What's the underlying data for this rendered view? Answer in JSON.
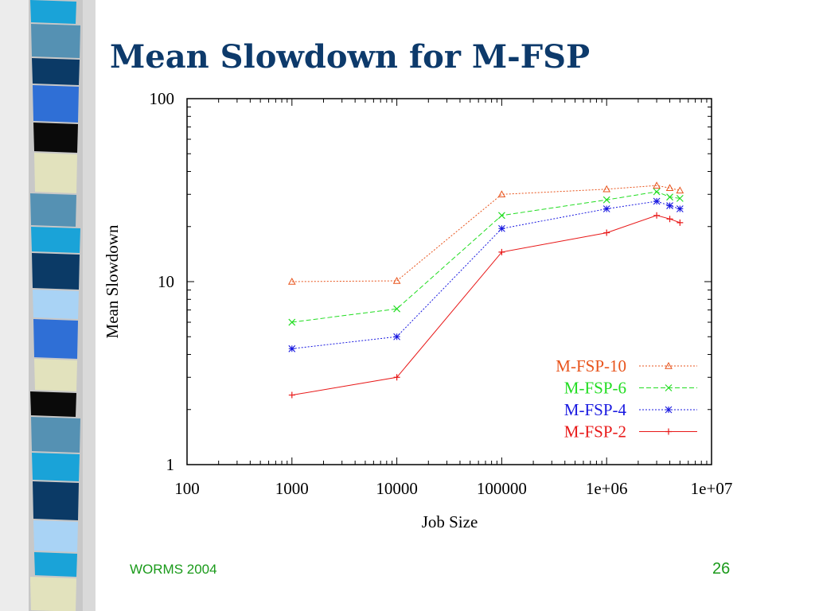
{
  "slide": {
    "title": "Mean Slowdown for M-FSP",
    "footer_left": "WORMS 2004",
    "page_number": "26"
  },
  "chart_data": {
    "type": "line",
    "title": "",
    "xlabel": "Job Size",
    "ylabel": "Mean Slowdown",
    "xscale": "log",
    "yscale": "log",
    "xlim": [
      100,
      10000000
    ],
    "ylim": [
      1,
      100
    ],
    "x_tick_labels": [
      "100",
      "1000",
      "10000",
      "100000",
      "1e+06",
      "1e+07"
    ],
    "y_tick_labels": [
      "1",
      "10",
      "100"
    ],
    "grid": false,
    "legend_position": "bottom-right",
    "series": [
      {
        "name": "M-FSP-10",
        "color": "#e8541c",
        "marker": "triangle",
        "dash": "dotted",
        "x": [
          1000,
          10000,
          100000,
          1000000,
          3000000,
          4000000,
          5000000
        ],
        "y": [
          10,
          10.1,
          30,
          32,
          33.5,
          32.5,
          31.5
        ]
      },
      {
        "name": "M-FSP-6",
        "color": "#22dd22",
        "marker": "x",
        "dash": "dashed",
        "x": [
          1000,
          10000,
          100000,
          1000000,
          3000000,
          4000000,
          5000000
        ],
        "y": [
          6,
          7.1,
          23,
          28,
          31,
          29,
          28.5
        ]
      },
      {
        "name": "M-FSP-4",
        "color": "#1a1ae0",
        "marker": "star",
        "dash": "dotted",
        "x": [
          1000,
          10000,
          100000,
          1000000,
          3000000,
          4000000,
          5000000
        ],
        "y": [
          4.3,
          5,
          19.5,
          25,
          27.5,
          26,
          25
        ]
      },
      {
        "name": "M-FSP-2",
        "color": "#e81818",
        "marker": "plus",
        "dash": "solid",
        "x": [
          1000,
          10000,
          100000,
          1000000,
          3000000,
          4000000,
          5000000
        ],
        "y": [
          2.4,
          3,
          14.5,
          18.5,
          23,
          22,
          21
        ]
      }
    ]
  }
}
